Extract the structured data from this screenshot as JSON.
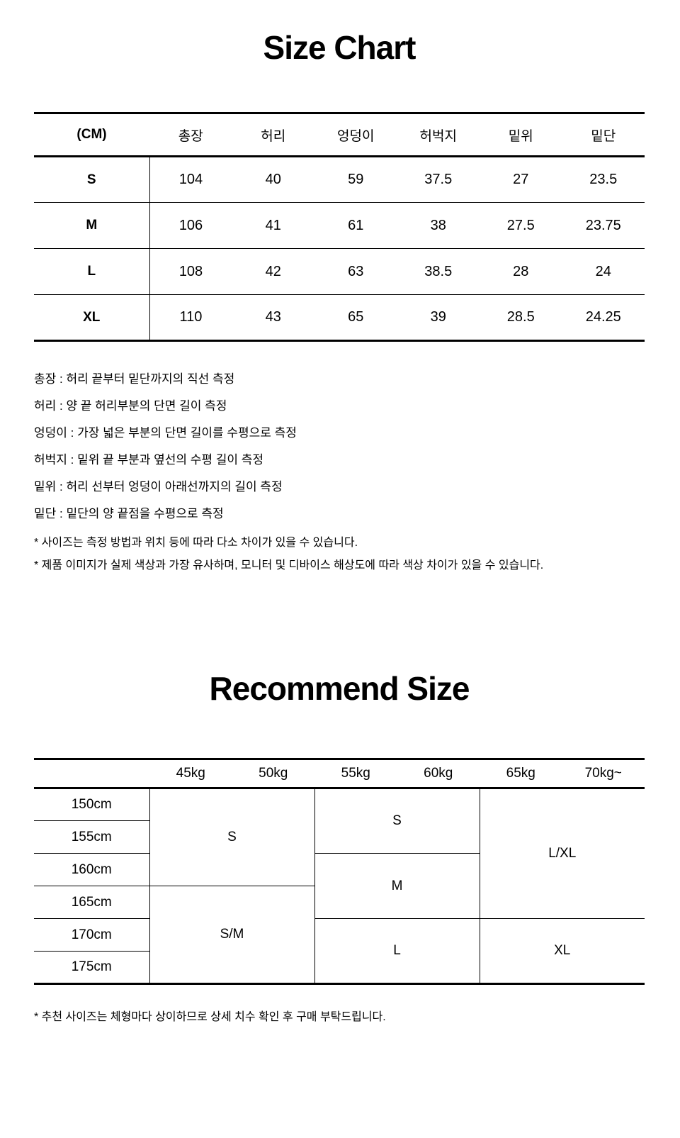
{
  "colors": {
    "text": "#000000",
    "background": "#ffffff",
    "line": "#000000"
  },
  "size_chart": {
    "title": "Size Chart",
    "unit_label": "(CM)",
    "columns": [
      "총장",
      "허리",
      "엉덩이",
      "허벅지",
      "밑위",
      "밑단"
    ],
    "rows": [
      {
        "size": "S",
        "values": [
          "104",
          "40",
          "59",
          "37.5",
          "27",
          "23.5"
        ]
      },
      {
        "size": "M",
        "values": [
          "106",
          "41",
          "61",
          "38",
          "27.5",
          "23.75"
        ]
      },
      {
        "size": "L",
        "values": [
          "108",
          "42",
          "63",
          "38.5",
          "28",
          "24"
        ]
      },
      {
        "size": "XL",
        "values": [
          "110",
          "43",
          "65",
          "39",
          "28.5",
          "24.25"
        ]
      }
    ],
    "measure_notes": [
      "총장 : 허리 끝부터 밑단까지의 직선 측정",
      "허리 : 양 끝 허리부분의 단면 길이 측정",
      "엉덩이 : 가장 넓은 부분의 단면 길이를 수평으로 측정",
      "허벅지 : 밑위 끝 부분과 옆선의 수평 길이 측정",
      "밑위 : 허리 선부터 엉덩이 아래선까지의 길이 측정",
      "밑단 : 밑단의 양 끝점을 수평으로 측정"
    ],
    "disclaimers": [
      "* 사이즈는 측정 방법과 위치 등에 따라 다소 차이가 있을 수 있습니다.",
      "* 제품 이미지가 실제 색상과 가장 유사하며, 모니터 및 디바이스 해상도에 따라 색상 차이가 있을 수 있습니다."
    ]
  },
  "recommend_size": {
    "title": "Recommend Size",
    "weight_columns": [
      "45kg",
      "50kg",
      "55kg",
      "60kg",
      "65kg",
      "70kg~"
    ],
    "height_rows": [
      "150cm",
      "155cm",
      "160cm",
      "165cm",
      "170cm",
      "175cm"
    ],
    "cells": {
      "a_top": "S",
      "a_bottom": "S/M",
      "b_top": "S",
      "b_middle": "M",
      "b_bottom": "L",
      "c_top": "L/XL",
      "c_bottom": "XL"
    },
    "footnote": "* 추천 사이즈는 체형마다 상이하므로 상세 치수 확인 후 구매 부탁드립니다."
  }
}
